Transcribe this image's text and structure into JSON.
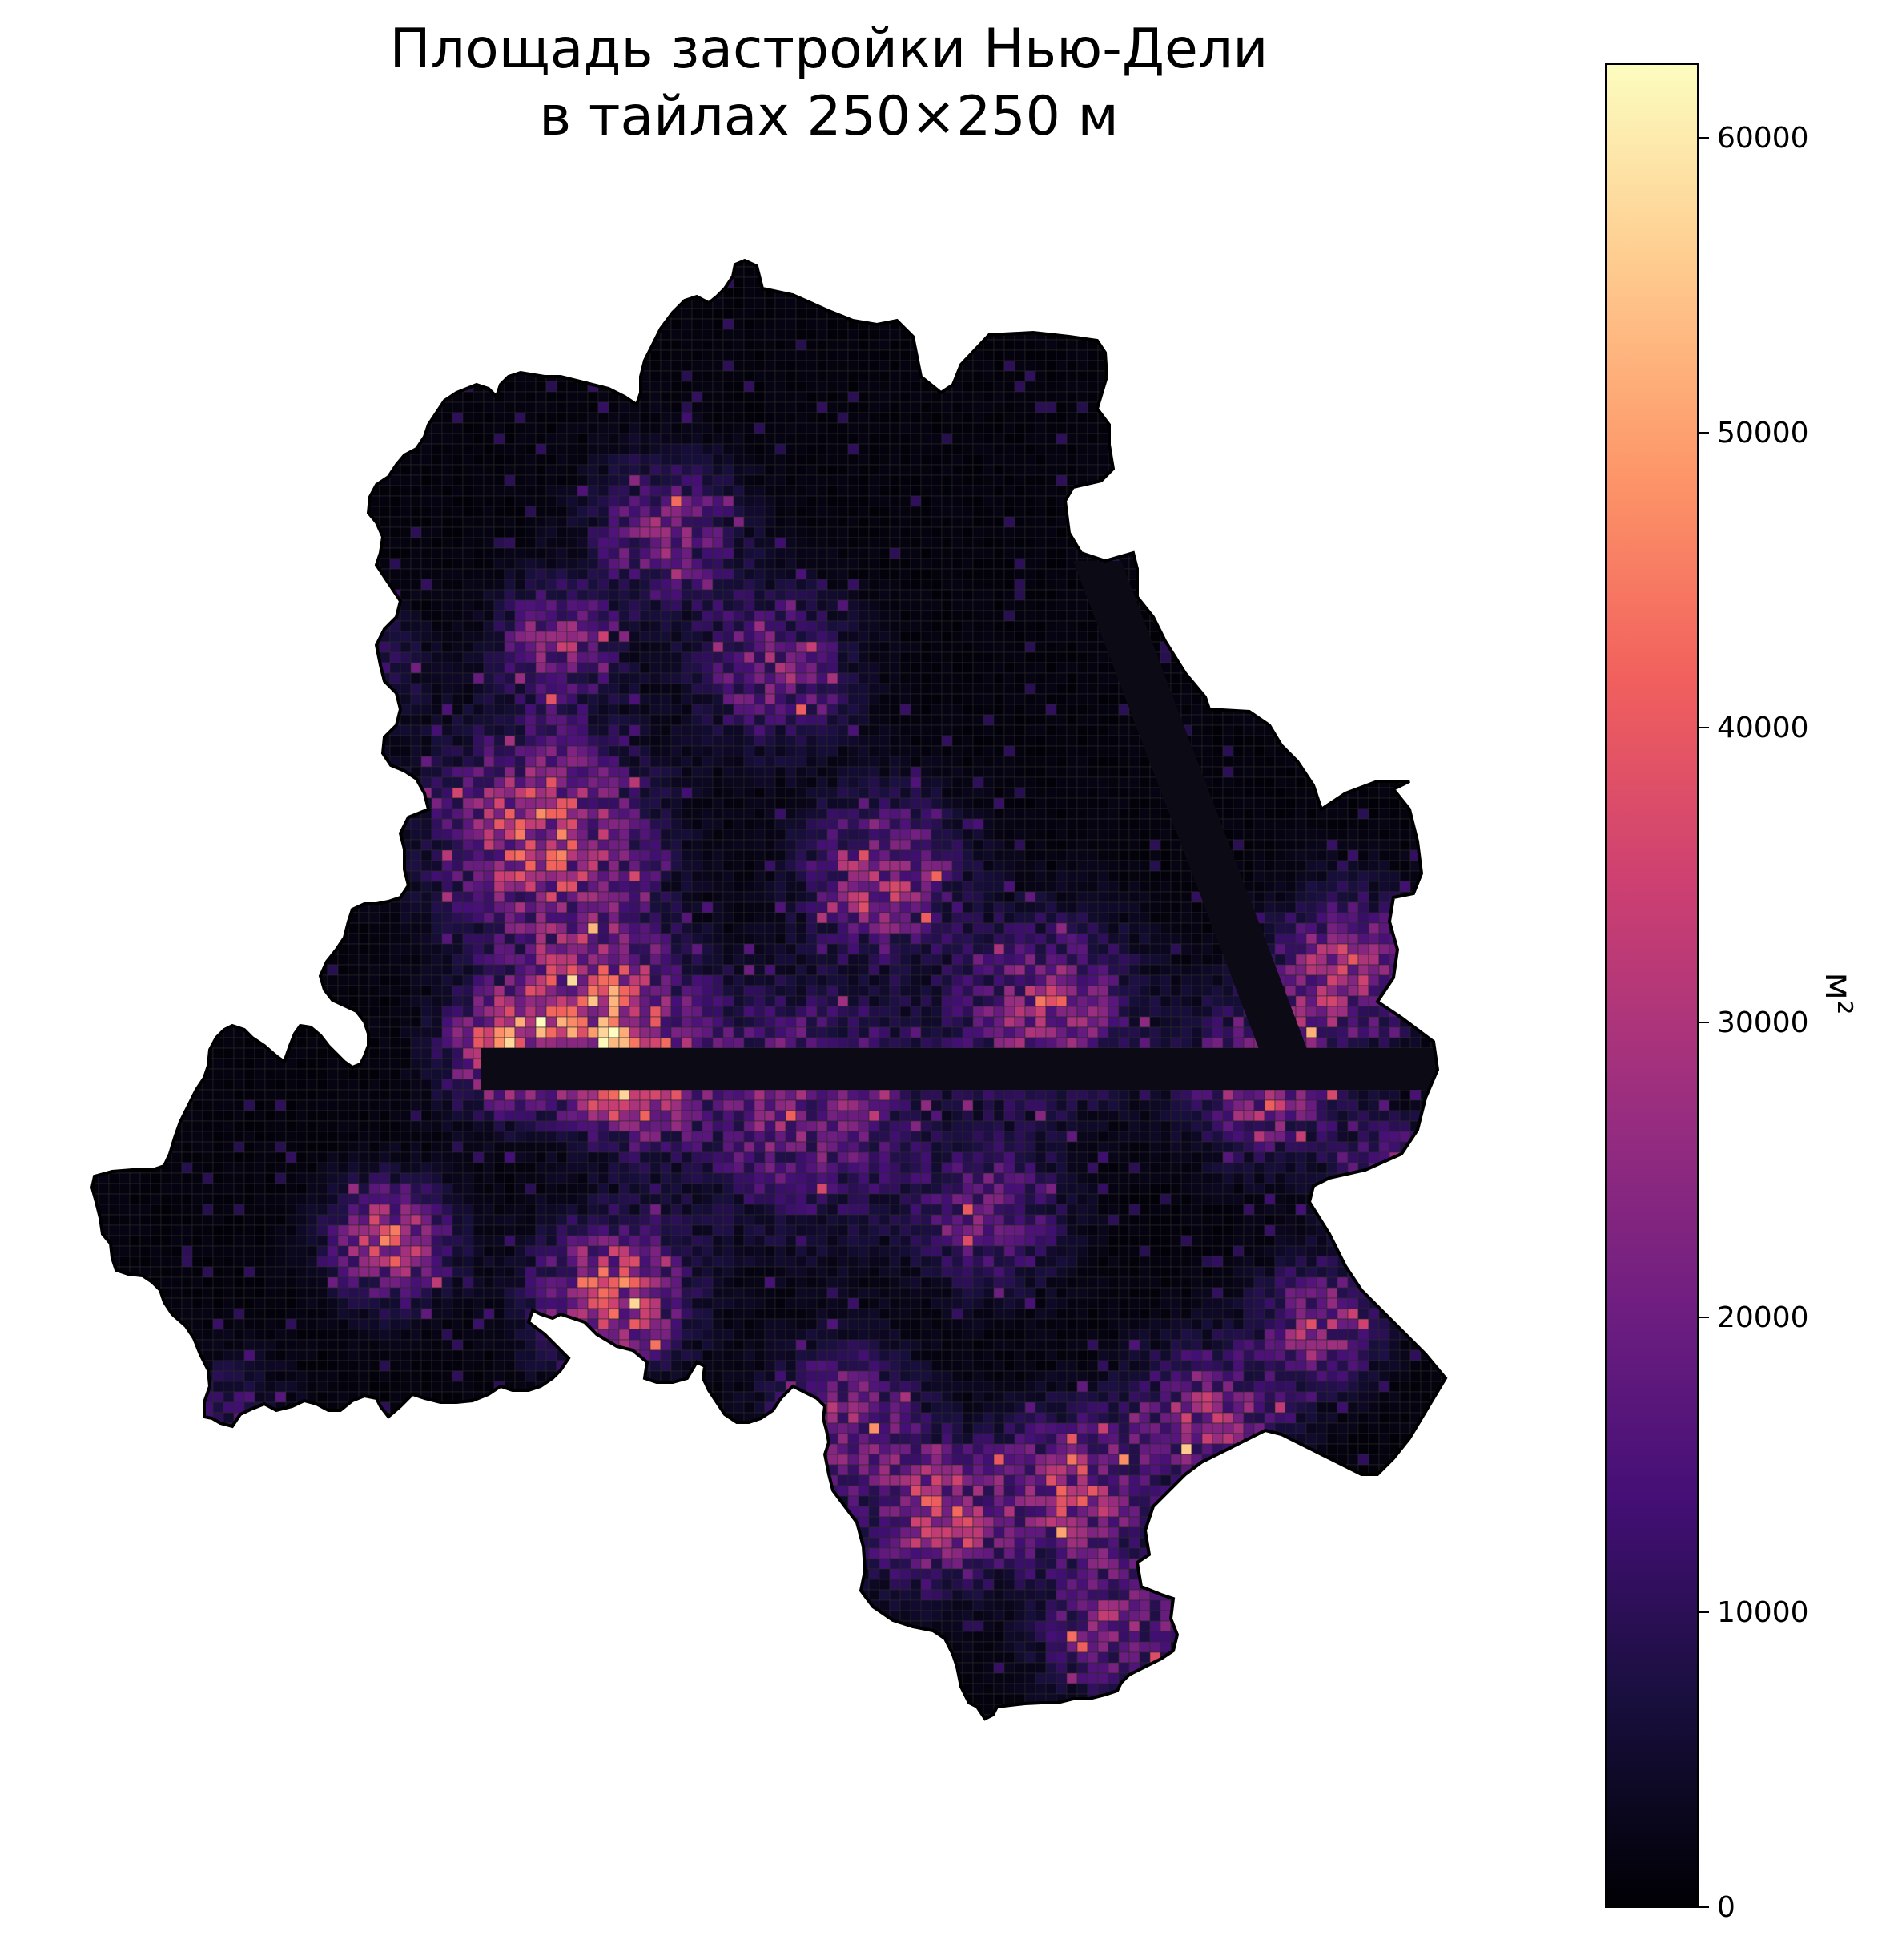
{
  "figure": {
    "title_line1": "Площадь застройки Нью-Дели",
    "title_line2": "в тайлах 250×250 м"
  },
  "colorbar": {
    "label": "м²",
    "colormap": "magma",
    "min": 0,
    "max": 62500,
    "ticks": [
      {
        "value": 0,
        "label": "0"
      },
      {
        "value": 10000,
        "label": "10000"
      },
      {
        "value": 20000,
        "label": "20000"
      },
      {
        "value": 30000,
        "label": "30000"
      },
      {
        "value": 40000,
        "label": "40000"
      },
      {
        "value": 50000,
        "label": "50000"
      },
      {
        "value": 60000,
        "label": "60000"
      }
    ],
    "stops": [
      "#000004",
      "#180f3d",
      "#440f76",
      "#721f81",
      "#9e2f7f",
      "#cd4071",
      "#f1605d",
      "#fd9668",
      "#feca8d",
      "#fcfdbf"
    ]
  },
  "map": {
    "background_value": 1500,
    "tile_size_m": 250,
    "dark_band_value": 0,
    "hotspots": [
      {
        "lon": 0.33,
        "lat": 0.42,
        "value": 45000,
        "spread": 0.07
      },
      {
        "lon": 0.37,
        "lat": 0.55,
        "value": 48000,
        "spread": 0.06
      },
      {
        "lon": 0.4,
        "lat": 0.6,
        "value": 50000,
        "spread": 0.04
      },
      {
        "lon": 0.3,
        "lat": 0.58,
        "value": 42000,
        "spread": 0.04
      },
      {
        "lon": 0.22,
        "lat": 0.72,
        "value": 45000,
        "spread": 0.04
      },
      {
        "lon": 0.38,
        "lat": 0.76,
        "value": 50000,
        "spread": 0.05
      },
      {
        "lon": 0.52,
        "lat": 0.62,
        "value": 30000,
        "spread": 0.08
      },
      {
        "lon": 0.58,
        "lat": 0.45,
        "value": 40000,
        "spread": 0.05
      },
      {
        "lon": 0.5,
        "lat": 0.3,
        "value": 30000,
        "spread": 0.05
      },
      {
        "lon": 0.42,
        "lat": 0.2,
        "value": 28000,
        "spread": 0.05
      },
      {
        "lon": 0.34,
        "lat": 0.28,
        "value": 32000,
        "spread": 0.04
      },
      {
        "lon": 0.7,
        "lat": 0.55,
        "value": 35000,
        "spread": 0.06
      },
      {
        "lon": 0.66,
        "lat": 0.7,
        "value": 25000,
        "spread": 0.05
      },
      {
        "lon": 0.55,
        "lat": 0.85,
        "value": 30000,
        "spread": 0.05
      },
      {
        "lon": 0.62,
        "lat": 0.92,
        "value": 40000,
        "spread": 0.05
      },
      {
        "lon": 0.72,
        "lat": 0.9,
        "value": 38000,
        "spread": 0.05
      },
      {
        "lon": 0.82,
        "lat": 0.85,
        "value": 35000,
        "spread": 0.05
      },
      {
        "lon": 0.86,
        "lat": 0.6,
        "value": 40000,
        "spread": 0.05
      },
      {
        "lon": 0.92,
        "lat": 0.52,
        "value": 38000,
        "spread": 0.05
      },
      {
        "lon": 0.96,
        "lat": 0.68,
        "value": 35000,
        "spread": 0.04
      },
      {
        "lon": 0.9,
        "lat": 0.78,
        "value": 36000,
        "spread": 0.04
      },
      {
        "lon": 0.75,
        "lat": 1.0,
        "value": 30000,
        "spread": 0.05
      },
      {
        "lon": 0.55,
        "lat": 1.1,
        "value": 25000,
        "spread": 0.04
      },
      {
        "lon": 0.58,
        "lat": 1.22,
        "value": 22000,
        "spread": 0.04
      },
      {
        "lon": 0.1,
        "lat": 0.85,
        "value": 15000,
        "spread": 0.04
      },
      {
        "lon": 0.2,
        "lat": 0.3,
        "value": 15000,
        "spread": 0.04
      }
    ]
  }
}
